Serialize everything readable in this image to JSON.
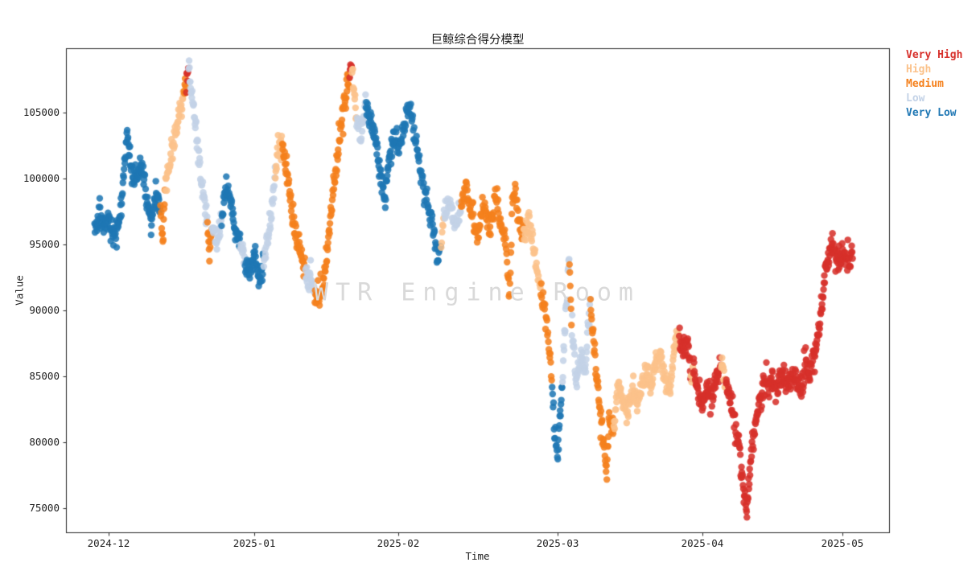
{
  "chart_data": {
    "type": "scatter",
    "title": "巨鲸综合得分模型",
    "xlabel": "Time",
    "ylabel": "Value",
    "annotation": "WTR Engine Room",
    "annotation_color": "#d9d9d9",
    "background": "#ffffff",
    "grid": false,
    "axis_color": "#262626",
    "ylim": [
      73170,
      109880
    ],
    "xlim": [
      "2024-11-22",
      "2025-05-10"
    ],
    "y_axis": {
      "ticks": [
        {
          "value": 105000,
          "label": "105000"
        },
        {
          "value": 100000,
          "label": "100000"
        },
        {
          "value": 95000,
          "label": "95000"
        },
        {
          "value": 90000,
          "label": "90000"
        },
        {
          "value": 85000,
          "label": "85000"
        },
        {
          "value": 80000,
          "label": "80000"
        },
        {
          "value": 75000,
          "label": "75000"
        }
      ]
    },
    "x_axis": {
      "ticks": [
        {
          "date": "2024-12-01",
          "label": "2024-12"
        },
        {
          "date": "2025-01-01",
          "label": "2025-01"
        },
        {
          "date": "2025-02-01",
          "label": "2025-02"
        },
        {
          "date": "2025-03-01",
          "label": "2025-03"
        },
        {
          "date": "2025-04-01",
          "label": "2025-04"
        },
        {
          "date": "2025-05-01",
          "label": "2025-05"
        }
      ],
      "anchors": [
        [
          "2024-11-22",
          0.0
        ],
        [
          "2024-12-01",
          0.0518
        ],
        [
          "2025-01-01",
          0.2288
        ],
        [
          "2025-02-01",
          0.4037
        ],
        [
          "2025-03-01",
          0.5973
        ],
        [
          "2025-04-01",
          0.7732
        ],
        [
          "2025-05-01",
          0.9433
        ],
        [
          "2025-05-10",
          1.0
        ]
      ]
    },
    "legend": {
      "position": "outside-upper-right",
      "frame": false,
      "items": [
        {
          "key": "VH",
          "label": "Very High",
          "color": "#d7302b"
        },
        {
          "key": "H",
          "label": "High",
          "color": "#fbc28b"
        },
        {
          "key": "M",
          "label": "Medium",
          "color": "#f5811d"
        },
        {
          "key": "L",
          "label": "Low",
          "color": "#c3d2e7"
        },
        {
          "key": "VL",
          "label": "Very Low",
          "color": "#1f77b4"
        }
      ]
    },
    "render_hints": {
      "points_per_day": 12,
      "jitter_sigma": 820,
      "dot_radius": 4.2,
      "dot_alpha": 0.87,
      "seed": 42
    },
    "series_keypoints": [
      [
        "2024-11-28",
        96200,
        "VL"
      ],
      [
        "2024-11-29",
        97400,
        "VL"
      ],
      [
        "2024-11-30",
        96200,
        "VL"
      ],
      [
        "2024-12-01",
        97300,
        "VL"
      ],
      [
        "2024-12-02",
        95400,
        "VL"
      ],
      [
        "2024-12-03",
        96600,
        "VL"
      ],
      [
        "2024-12-04",
        99000,
        "VL"
      ],
      [
        "2024-12-05",
        103500,
        "VL"
      ],
      [
        "2024-12-05T12:00",
        101800,
        "VL"
      ],
      [
        "2024-12-06",
        100200,
        "VL"
      ],
      [
        "2024-12-07",
        99900,
        "VL"
      ],
      [
        "2024-12-08",
        101300,
        "VL"
      ],
      [
        "2024-12-09",
        98400,
        "VL"
      ],
      [
        "2024-12-10",
        96700,
        "VL"
      ],
      [
        "2024-12-11",
        98300,
        "VL"
      ],
      [
        "2024-12-12",
        98200,
        "M"
      ],
      [
        "2024-12-12T12:00",
        94900,
        "M"
      ],
      [
        "2024-12-13",
        99400,
        "H"
      ],
      [
        "2024-12-14",
        101300,
        "H"
      ],
      [
        "2024-12-15",
        103100,
        "H"
      ],
      [
        "2024-12-16",
        104900,
        "H"
      ],
      [
        "2024-12-17",
        106400,
        "M"
      ],
      [
        "2024-12-17T12:00",
        107200,
        "VH"
      ],
      [
        "2024-12-18",
        108200,
        "L"
      ],
      [
        "2024-12-19",
        105600,
        "L"
      ],
      [
        "2024-12-20",
        101900,
        "L"
      ],
      [
        "2024-12-21",
        99100,
        "L"
      ],
      [
        "2024-12-22",
        96900,
        "M"
      ],
      [
        "2024-12-22T12:00",
        94400,
        "M"
      ],
      [
        "2024-12-23",
        96700,
        "L"
      ],
      [
        "2024-12-24",
        94900,
        "L"
      ],
      [
        "2024-12-25",
        97400,
        "VL"
      ],
      [
        "2024-12-26",
        99100,
        "VL"
      ],
      [
        "2024-12-27",
        98400,
        "VL"
      ],
      [
        "2024-12-28",
        95900,
        "VL"
      ],
      [
        "2024-12-29",
        95300,
        "L"
      ],
      [
        "2024-12-30",
        93700,
        "VL"
      ],
      [
        "2024-12-31",
        92700,
        "VL"
      ],
      [
        "2025-01-01",
        94700,
        "VL"
      ],
      [
        "2025-01-02",
        92000,
        "VL"
      ],
      [
        "2025-01-03",
        93600,
        "L"
      ],
      [
        "2025-01-04",
        96000,
        "L"
      ],
      [
        "2025-01-05",
        98300,
        "L"
      ],
      [
        "2025-01-05T12:00",
        100500,
        "H"
      ],
      [
        "2025-01-06",
        102300,
        "H"
      ],
      [
        "2025-01-07",
        102600,
        "M"
      ],
      [
        "2025-01-08",
        100300,
        "M"
      ],
      [
        "2025-01-09",
        98000,
        "M"
      ],
      [
        "2025-01-10",
        95600,
        "M"
      ],
      [
        "2025-01-11",
        94000,
        "M"
      ],
      [
        "2025-01-12",
        93000,
        "L"
      ],
      [
        "2025-01-13",
        92300,
        "L"
      ],
      [
        "2025-01-14",
        91600,
        "M"
      ],
      [
        "2025-01-15",
        90800,
        "M"
      ],
      [
        "2025-01-16",
        92500,
        "M"
      ],
      [
        "2025-01-17",
        95500,
        "M"
      ],
      [
        "2025-01-18",
        99000,
        "M"
      ],
      [
        "2025-01-19",
        102000,
        "M"
      ],
      [
        "2025-01-20",
        104900,
        "M"
      ],
      [
        "2025-01-21",
        107100,
        "M"
      ],
      [
        "2025-01-21T12:00",
        108000,
        "VH"
      ],
      [
        "2025-01-22",
        108300,
        "H"
      ],
      [
        "2025-01-22T12:00",
        106700,
        "H"
      ],
      [
        "2025-01-23",
        104700,
        "L"
      ],
      [
        "2025-01-24",
        103100,
        "L"
      ],
      [
        "2025-01-25",
        105700,
        "VL"
      ],
      [
        "2025-01-26",
        104400,
        "VL"
      ],
      [
        "2025-01-27",
        103100,
        "VL"
      ],
      [
        "2025-01-28",
        100700,
        "VL"
      ],
      [
        "2025-01-29",
        98500,
        "VL"
      ],
      [
        "2025-01-30",
        101400,
        "VL"
      ],
      [
        "2025-01-31",
        103100,
        "VL"
      ],
      [
        "2025-02-01",
        102100,
        "VL"
      ],
      [
        "2025-02-02",
        104100,
        "VL"
      ],
      [
        "2025-02-03",
        105500,
        "VL"
      ],
      [
        "2025-02-04",
        103100,
        "VL"
      ],
      [
        "2025-02-05",
        100400,
        "VL"
      ],
      [
        "2025-02-06",
        98100,
        "VL"
      ],
      [
        "2025-02-07",
        96700,
        "VL"
      ],
      [
        "2025-02-08",
        93900,
        "VL"
      ],
      [
        "2025-02-08T12:00",
        95100,
        "H"
      ],
      [
        "2025-02-09",
        96900,
        "L"
      ],
      [
        "2025-02-10",
        98100,
        "L"
      ],
      [
        "2025-02-11",
        96300,
        "L"
      ],
      [
        "2025-02-12",
        97900,
        "M"
      ],
      [
        "2025-02-13",
        99200,
        "M"
      ],
      [
        "2025-02-14",
        97100,
        "M"
      ],
      [
        "2025-02-15",
        95900,
        "M"
      ],
      [
        "2025-02-16",
        98200,
        "M"
      ],
      [
        "2025-02-17",
        96100,
        "M"
      ],
      [
        "2025-02-18",
        98700,
        "M"
      ],
      [
        "2025-02-19",
        96400,
        "M"
      ],
      [
        "2025-02-20",
        94800,
        "M"
      ],
      [
        "2025-02-20T12:00",
        90600,
        "M"
      ],
      [
        "2025-02-21",
        97400,
        "M"
      ],
      [
        "2025-02-21T12:00",
        99200,
        "M"
      ],
      [
        "2025-02-22",
        97100,
        "M"
      ],
      [
        "2025-02-23",
        95700,
        "H"
      ],
      [
        "2025-02-24",
        96700,
        "H"
      ],
      [
        "2025-02-25",
        94100,
        "H"
      ],
      [
        "2025-02-26",
        91700,
        "M"
      ],
      [
        "2025-02-27",
        89400,
        "M"
      ],
      [
        "2025-02-27T12:00",
        87100,
        "M"
      ],
      [
        "2025-02-28",
        84300,
        "VL"
      ],
      [
        "2025-02-28T12:00",
        80400,
        "VL"
      ],
      [
        "2025-03-01",
        79200,
        "VL"
      ],
      [
        "2025-03-02",
        84600,
        "L"
      ],
      [
        "2025-03-03",
        91600,
        "L"
      ],
      [
        "2025-03-03T12:00",
        94200,
        "M"
      ],
      [
        "2025-03-04",
        88900,
        "L"
      ],
      [
        "2025-03-05",
        84700,
        "L"
      ],
      [
        "2025-03-06",
        86600,
        "L"
      ],
      [
        "2025-03-07",
        85100,
        "L"
      ],
      [
        "2025-03-07T12:00",
        88700,
        "L"
      ],
      [
        "2025-03-08",
        90200,
        "M"
      ],
      [
        "2025-03-09",
        86400,
        "M"
      ],
      [
        "2025-03-10",
        82700,
        "M"
      ],
      [
        "2025-03-11",
        79700,
        "M"
      ],
      [
        "2025-03-11T12:00",
        77200,
        "M"
      ],
      [
        "2025-03-12",
        81900,
        "M"
      ],
      [
        "2025-03-13",
        80900,
        "H"
      ],
      [
        "2025-03-14",
        84200,
        "H"
      ],
      [
        "2025-03-15",
        83100,
        "H"
      ],
      [
        "2025-03-16",
        82300,
        "H"
      ],
      [
        "2025-03-17",
        83900,
        "H"
      ],
      [
        "2025-03-18",
        83000,
        "H"
      ],
      [
        "2025-03-19",
        84500,
        "H"
      ],
      [
        "2025-03-20",
        85200,
        "H"
      ],
      [
        "2025-03-21",
        84000,
        "H"
      ],
      [
        "2025-03-22",
        86000,
        "H"
      ],
      [
        "2025-03-23",
        86800,
        "H"
      ],
      [
        "2025-03-24",
        85000,
        "H"
      ],
      [
        "2025-03-25",
        84000,
        "H"
      ],
      [
        "2025-03-26",
        87000,
        "H"
      ],
      [
        "2025-03-26T12:00",
        88200,
        "H"
      ],
      [
        "2025-03-27",
        87800,
        "VH"
      ],
      [
        "2025-03-28",
        87000,
        "VH"
      ],
      [
        "2025-03-29",
        87900,
        "VH"
      ],
      [
        "2025-03-29T12:00",
        84600,
        "H"
      ],
      [
        "2025-03-30",
        85900,
        "VH"
      ],
      [
        "2025-03-31",
        83900,
        "VH"
      ],
      [
        "2025-04-01",
        82900,
        "VH"
      ],
      [
        "2025-04-02",
        84200,
        "VH"
      ],
      [
        "2025-04-03",
        83100,
        "VH"
      ],
      [
        "2025-04-04",
        85100,
        "VH"
      ],
      [
        "2025-04-05",
        86200,
        "H"
      ],
      [
        "2025-04-06",
        84400,
        "VH"
      ],
      [
        "2025-04-07",
        83400,
        "VH"
      ],
      [
        "2025-04-08",
        81400,
        "VH"
      ],
      [
        "2025-04-09",
        79000,
        "VH"
      ],
      [
        "2025-04-10",
        75600,
        "VH"
      ],
      [
        "2025-04-10T12:00",
        74900,
        "VH"
      ],
      [
        "2025-04-11",
        77500,
        "VH"
      ],
      [
        "2025-04-12",
        80500,
        "VH"
      ],
      [
        "2025-04-13",
        83000,
        "VH"
      ],
      [
        "2025-04-14",
        84400,
        "VH"
      ],
      [
        "2025-04-15",
        84300,
        "VH"
      ],
      [
        "2025-04-16",
        84900,
        "VH"
      ],
      [
        "2025-04-17",
        84100,
        "VH"
      ],
      [
        "2025-04-18",
        85200,
        "VH"
      ],
      [
        "2025-04-19",
        84500,
        "VH"
      ],
      [
        "2025-04-20",
        85100,
        "VH"
      ],
      [
        "2025-04-21",
        84700,
        "VH"
      ],
      [
        "2025-04-22",
        84200,
        "VH"
      ],
      [
        "2025-04-23",
        85400,
        "VH"
      ],
      [
        "2025-04-24",
        85300,
        "VH"
      ],
      [
        "2025-04-25",
        86800,
        "VH"
      ],
      [
        "2025-04-26",
        88400,
        "VH"
      ],
      [
        "2025-04-26T12:00",
        90100,
        "VH"
      ],
      [
        "2025-04-27",
        91900,
        "VH"
      ],
      [
        "2025-04-27T12:00",
        93100,
        "VH"
      ],
      [
        "2025-04-28",
        94200,
        "VH"
      ],
      [
        "2025-04-29",
        95000,
        "VH"
      ],
      [
        "2025-04-30",
        93700,
        "VH"
      ],
      [
        "2025-05-01",
        94500,
        "VH"
      ],
      [
        "2025-05-02",
        93500,
        "VH"
      ],
      [
        "2025-05-03",
        94300,
        "VH"
      ]
    ]
  }
}
